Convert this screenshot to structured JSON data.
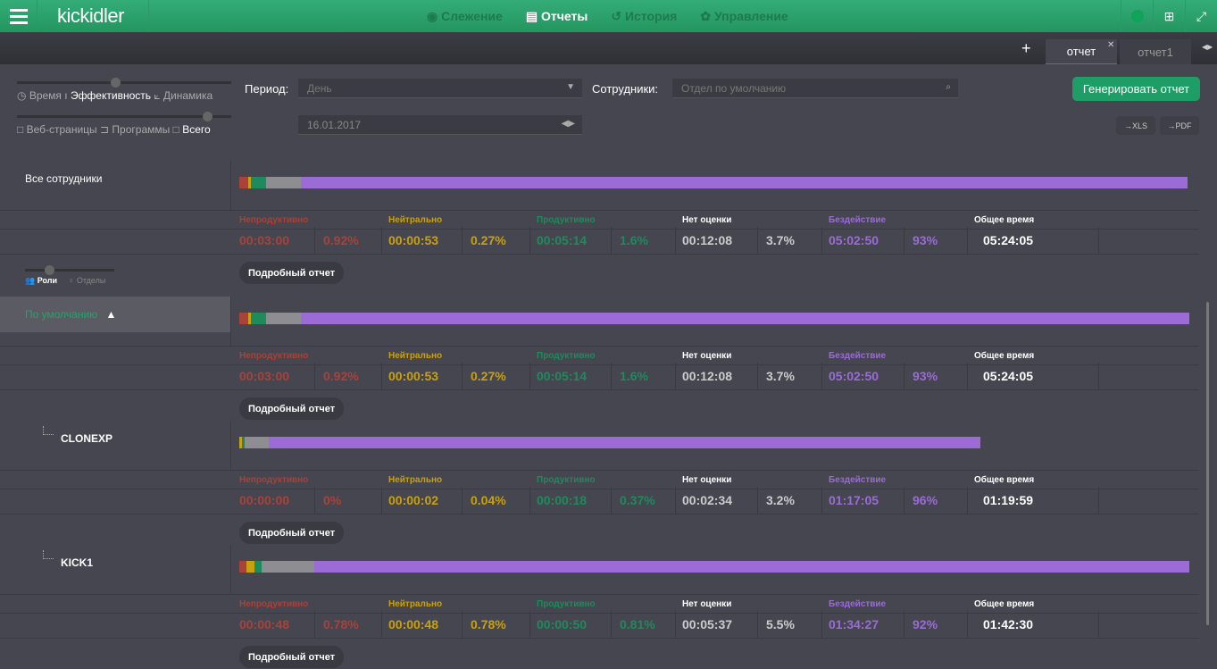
{
  "header": {
    "logo": "kickidler",
    "nav": [
      {
        "label": "Слежение",
        "icon": "eye-icon",
        "active": false
      },
      {
        "label": "Отчеты",
        "icon": "report-icon",
        "active": true
      },
      {
        "label": "История",
        "icon": "history-icon",
        "active": false
      },
      {
        "label": "Управление",
        "icon": "gear-icon",
        "active": false
      }
    ]
  },
  "tabs": [
    {
      "label": "отчет",
      "active": true
    },
    {
      "label": "отчет1",
      "active": false
    }
  ],
  "filters": {
    "view_modes": [
      "Время",
      "Эффективность",
      "Динамика"
    ],
    "view_selected": "Эффективность",
    "sources": [
      "Веб-страницы",
      "Программы",
      "Всего"
    ],
    "source_selected": "Всего",
    "period_label": "Период:",
    "period_value": "День",
    "date_value": "16.01.2017",
    "employees_label": "Сотрудники:",
    "employees_placeholder": "Отдел по умолчанию",
    "generate": "Генерировать отчет",
    "xls": "→XLS",
    "pdf": "→PDF"
  },
  "grouping": {
    "roles": "Роли",
    "departments": "Отделы",
    "selected": "Роли"
  },
  "stat_labels": [
    "Непродуктивно",
    "Нейтрально",
    "Продуктивно",
    "Нет оценки",
    "Бездействие",
    "Общее время"
  ],
  "colors": {
    "unproductive": "#a8423a",
    "neutral": "#c9a10e",
    "productive": "#1f8a5c",
    "unrated": "#8e8e92",
    "idle": "#9b6bd6",
    "total": "#ffffff",
    "accent": "#24955f"
  },
  "detail_label": "Подробный отчет",
  "groups": [
    {
      "name": "Все сотрудники",
      "kind": "all",
      "bar_fill": 1,
      "values": [
        [
          "00:03:00",
          "0.92%"
        ],
        [
          "00:00:53",
          "0.27%"
        ],
        [
          "00:05:14",
          "1.6%"
        ],
        [
          "00:12:08",
          "3.7%"
        ],
        [
          "05:02:50",
          "93%"
        ],
        [
          "05:24:05"
        ]
      ]
    },
    {
      "name": "По умолчанию",
      "kind": "dept",
      "bar_fill": 1,
      "values": [
        [
          "00:03:00",
          "0.92%"
        ],
        [
          "00:00:53",
          "0.27%"
        ],
        [
          "00:05:14",
          "1.6%"
        ],
        [
          "00:12:08",
          "3.7%"
        ],
        [
          "05:02:50",
          "93%"
        ],
        [
          "05:24:05"
        ]
      ]
    },
    {
      "name": "CLONEXP",
      "kind": "user",
      "bar_fill": 0.78,
      "values": [
        [
          "00:00:00",
          "0%"
        ],
        [
          "00:00:02",
          "0.04%"
        ],
        [
          "00:00:18",
          "0.37%"
        ],
        [
          "00:02:34",
          "3.2%"
        ],
        [
          "01:17:05",
          "96%"
        ],
        [
          "01:19:59"
        ]
      ]
    },
    {
      "name": "KICK1",
      "kind": "user",
      "bar_fill": 1,
      "values": [
        [
          "00:00:48",
          "0.78%"
        ],
        [
          "00:00:48",
          "0.78%"
        ],
        [
          "00:00:50",
          "0.81%"
        ],
        [
          "00:05:37",
          "5.5%"
        ],
        [
          "01:34:27",
          "92%"
        ],
        [
          "01:42:30"
        ]
      ]
    }
  ]
}
